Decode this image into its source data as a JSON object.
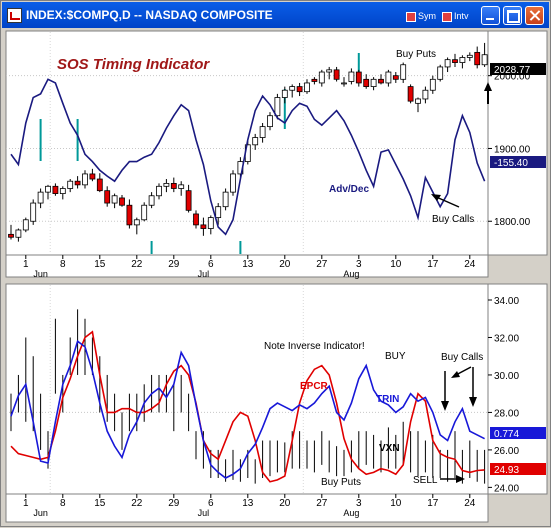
{
  "window": {
    "title": "INDEX:$COMPQ,D -- NASDAQ COMPOSITE",
    "sym_label": "Sym",
    "intv_label": "Intv"
  },
  "top_panel": {
    "title": "SOS Timing Indicator",
    "price_tag": "2028.77",
    "advdec_tag": "-155.40",
    "axis_ticks": [
      "2000.00",
      "1900.00",
      "1800.00"
    ],
    "annotations": {
      "buy_puts": "Buy Puts",
      "buy_calls": "Buy Calls",
      "adv_dec": "Adv/Dec"
    }
  },
  "bottom_panel": {
    "axis_ticks": [
      "34.00",
      "32.00",
      "30.00",
      "28.00",
      "26.00",
      "24.00"
    ],
    "trin_tag": "0.774",
    "vxn_tag": "24.93",
    "annotations": {
      "note": "Note Inverse Indicator!",
      "buy": "BUY",
      "buy_calls": "Buy Calls",
      "epcr": "EPCR",
      "trin": "TRIN",
      "vxn": "VXN",
      "buy_puts": "Buy Puts",
      "sell": "SELL"
    }
  },
  "x_axis": {
    "days": [
      "1",
      "8",
      "15",
      "22",
      "29",
      "6",
      "13",
      "20",
      "27",
      "3",
      "10",
      "17",
      "24"
    ],
    "months": [
      "Jun",
      "Jul",
      "Aug"
    ]
  },
  "colors": {
    "adv_dec": "#1a1a80",
    "epcr": "#e00000",
    "trin": "#1818d8",
    "bull": "#ffffff",
    "bear": "#e00000",
    "signal": "#009999"
  },
  "chart_data": [
    {
      "type": "candlestick",
      "title": "SOS Timing Indicator",
      "series": [
        {
          "name": "INDEX:$COMPQ",
          "candles": [
            [
              1782,
              1795,
              1775,
              1778
            ],
            [
              1778,
              1790,
              1772,
              1788
            ],
            [
              1788,
              1805,
              1785,
              1802
            ],
            [
              1800,
              1830,
              1795,
              1825
            ],
            [
              1825,
              1845,
              1818,
              1840
            ],
            [
              1840,
              1850,
              1830,
              1848
            ],
            [
              1848,
              1852,
              1835,
              1838
            ],
            [
              1838,
              1848,
              1830,
              1845
            ],
            [
              1845,
              1858,
              1840,
              1855
            ],
            [
              1855,
              1862,
              1845,
              1850
            ],
            [
              1850,
              1870,
              1845,
              1865
            ],
            [
              1865,
              1872,
              1855,
              1858
            ],
            [
              1858,
              1866,
              1840,
              1842
            ],
            [
              1842,
              1848,
              1820,
              1825
            ],
            [
              1825,
              1838,
              1818,
              1835
            ],
            [
              1832,
              1836,
              1820,
              1822
            ],
            [
              1822,
              1830,
              1790,
              1795
            ],
            [
              1795,
              1805,
              1782,
              1802
            ],
            [
              1802,
              1826,
              1800,
              1822
            ],
            [
              1822,
              1840,
              1818,
              1835
            ],
            [
              1835,
              1852,
              1830,
              1848
            ],
            [
              1848,
              1858,
              1840,
              1852
            ],
            [
              1852,
              1860,
              1840,
              1845
            ],
            [
              1845,
              1855,
              1835,
              1850
            ],
            [
              1842,
              1850,
              1812,
              1815
            ],
            [
              1810,
              1815,
              1790,
              1795
            ],
            [
              1795,
              1805,
              1780,
              1790
            ],
            [
              1790,
              1808,
              1782,
              1805
            ],
            [
              1805,
              1825,
              1795,
              1820
            ],
            [
              1820,
              1845,
              1815,
              1840
            ],
            [
              1840,
              1870,
              1835,
              1865
            ],
            [
              1865,
              1888,
              1860,
              1882
            ],
            [
              1882,
              1910,
              1878,
              1905
            ],
            [
              1905,
              1920,
              1898,
              1915
            ],
            [
              1915,
              1935,
              1908,
              1930
            ],
            [
              1930,
              1950,
              1925,
              1945
            ],
            [
              1945,
              1975,
              1940,
              1970
            ],
            [
              1970,
              1985,
              1962,
              1980
            ],
            [
              1980,
              1988,
              1970,
              1985
            ],
            [
              1985,
              1990,
              1972,
              1978
            ],
            [
              1978,
              1995,
              1975,
              1990
            ],
            [
              1995,
              1998,
              1988,
              1992
            ],
            [
              1990,
              2008,
              1985,
              2005
            ],
            [
              2005,
              2012,
              1995,
              2008
            ],
            [
              2008,
              2012,
              1992,
              1995
            ],
            [
              1990,
              1998,
              1985,
              1990
            ],
            [
              1992,
              2010,
              1988,
              2005
            ],
            [
              2005,
              2008,
              1985,
              1990
            ],
            [
              1995,
              2002,
              1982,
              1985
            ],
            [
              1985,
              1998,
              1980,
              1995
            ],
            [
              1995,
              2002,
              1988,
              1990
            ],
            [
              1990,
              2008,
              1985,
              2005
            ],
            [
              2000,
              2005,
              1990,
              1995
            ],
            [
              1995,
              2018,
              1990,
              2015
            ],
            [
              1985,
              1988,
              1962,
              1965
            ],
            [
              1962,
              1970,
              1950,
              1968
            ],
            [
              1968,
              1985,
              1962,
              1980
            ],
            [
              1980,
              2000,
              1975,
              1995
            ],
            [
              1995,
              2015,
              1992,
              2012
            ],
            [
              2012,
              2025,
              2005,
              2022
            ],
            [
              2022,
              2030,
              2012,
              2018
            ],
            [
              2018,
              2028,
              2010,
              2025
            ],
            [
              2025,
              2032,
              2020,
              2028
            ],
            [
              2032,
              2040,
              2010,
              2015
            ],
            [
              2015,
              2045,
              2012,
              2028.77
            ]
          ]
        },
        {
          "name": "Adv/Dec",
          "values": [
            1892,
            1878,
            1935,
            1970,
            1975,
            1995,
            1990,
            1962,
            1935,
            1918,
            1892,
            1882,
            1870,
            1862,
            1855,
            1870,
            1882,
            1882,
            1888,
            1892,
            1908,
            1928,
            1945,
            1960,
            1952,
            1912,
            1878,
            1828,
            1792,
            1782,
            1802,
            1858,
            1912,
            1952,
            1972,
            1960,
            1942,
            1935,
            1952,
            1962,
            1958,
            1940,
            1932,
            1942,
            1952,
            1938,
            1918,
            1895,
            1870,
            1848,
            1895,
            1898,
            1878,
            1858,
            1835,
            1805,
            1860,
            1840,
            1820,
            1838,
            1912,
            1945,
            1922,
            1880,
            1855
          ]
        }
      ],
      "ylim": [
        1755,
        2060
      ],
      "axis_ticks": [
        2000,
        1900,
        1800
      ]
    },
    {
      "type": "line",
      "series": [
        {
          "name": "EPCR",
          "values": [
            26.2,
            25.8,
            25.7,
            25.6,
            25.5,
            25.6,
            27.0,
            28.8,
            29.8,
            31.0,
            32.0,
            32.3,
            30.0,
            28.0,
            28.0,
            28.2,
            28.2,
            28.0,
            28.0,
            28.2,
            28.5,
            29.5,
            30.2,
            30.5,
            30.0,
            28.5,
            26.5,
            25.8,
            25.5,
            26.5,
            27.5,
            28.0,
            27.8,
            26.5,
            24.8,
            24.3,
            24.4,
            24.6,
            26.5,
            28.5,
            29.7,
            30.3,
            30.5,
            30.0,
            28.5,
            26.6,
            25.5,
            25.0,
            24.7,
            24.8,
            25.0,
            24.9,
            24.7,
            25.2,
            27.5,
            29.0,
            28.6,
            26.5,
            25.8,
            25.6,
            25.5,
            24.9,
            24.8,
            24.9,
            24.93
          ]
        },
        {
          "name": "TRIN",
          "values": [
            27.8,
            28.9,
            29.5,
            27.5,
            25.4,
            25.3,
            27.5,
            29.5,
            30.5,
            31.8,
            31.5,
            30.2,
            28.5,
            27.0,
            26.2,
            25.6,
            26.8,
            27.5,
            28.5,
            29.0,
            29.3,
            28.8,
            29.5,
            31.2,
            30.5,
            28.4,
            26.5,
            25.2,
            24.8,
            24.5,
            24.7,
            25.0,
            25.8,
            26.3,
            27.2,
            28.2,
            28.5,
            28.3,
            28.1,
            28.4,
            28.2,
            28.5,
            29.0,
            29.4,
            28.0,
            27.6,
            28.5,
            29.8,
            30.5,
            29.2,
            28.6,
            28.4,
            28.0,
            28.3,
            29.0,
            28.6,
            28.8,
            28.0,
            26.8,
            26.5,
            27.5,
            28.2,
            27.0,
            26.8,
            26.6
          ]
        },
        {
          "name": "VXN",
          "hl": [
            [
              29,
              27
            ],
            [
              30,
              28
            ],
            [
              32,
              27.5
            ],
            [
              31,
              27
            ],
            [
              29,
              26
            ],
            [
              27,
              25
            ],
            [
              33,
              29
            ],
            [
              30,
              28
            ],
            [
              32,
              30
            ],
            [
              33.5,
              30
            ],
            [
              33,
              30
            ],
            [
              32,
              30
            ],
            [
              31,
              28
            ],
            [
              30,
              27.5
            ],
            [
              29,
              27
            ],
            [
              28,
              26
            ],
            [
              29,
              27
            ],
            [
              29,
              27
            ],
            [
              29.5,
              27.5
            ],
            [
              30,
              28
            ],
            [
              30,
              28
            ],
            [
              30,
              28
            ],
            [
              29.5,
              27
            ],
            [
              30,
              28
            ],
            [
              29,
              27
            ],
            [
              27,
              25.5
            ],
            [
              27,
              25
            ],
            [
              26,
              24.5
            ],
            [
              26,
              24.5
            ],
            [
              25.5,
              24.3
            ],
            [
              26,
              24.4
            ],
            [
              25.5,
              24.3
            ],
            [
              26,
              24.5
            ],
            [
              25.5,
              24.2
            ],
            [
              26.5,
              24.5
            ],
            [
              26.5,
              24.6
            ],
            [
              26.5,
              24.8
            ],
            [
              26.4,
              24.8
            ],
            [
              27,
              25
            ],
            [
              27,
              25
            ],
            [
              26.5,
              25
            ],
            [
              26.5,
              24.8
            ],
            [
              27,
              25.2
            ],
            [
              26.5,
              24.8
            ],
            [
              26.2,
              24.6
            ],
            [
              26,
              24.6
            ],
            [
              26.5,
              24.8
            ],
            [
              27,
              25
            ],
            [
              27,
              25.2
            ],
            [
              26.8,
              25
            ],
            [
              26.5,
              24.8
            ],
            [
              27.2,
              25
            ],
            [
              26.8,
              25
            ],
            [
              27.5,
              25.2
            ],
            [
              27,
              24.8
            ],
            [
              27,
              24.6
            ],
            [
              26.5,
              24.8
            ],
            [
              26.8,
              24.5
            ],
            [
              26,
              24.5
            ],
            [
              26,
              24.3
            ],
            [
              27,
              24.5
            ],
            [
              26,
              24.2
            ],
            [
              26.5,
              24.5
            ],
            [
              26,
              24.3
            ],
            [
              26,
              24.2
            ]
          ]
        }
      ],
      "ylim": [
        23.7,
        34.8
      ],
      "axis_ticks": [
        34,
        32,
        30,
        28,
        26,
        24
      ]
    }
  ]
}
